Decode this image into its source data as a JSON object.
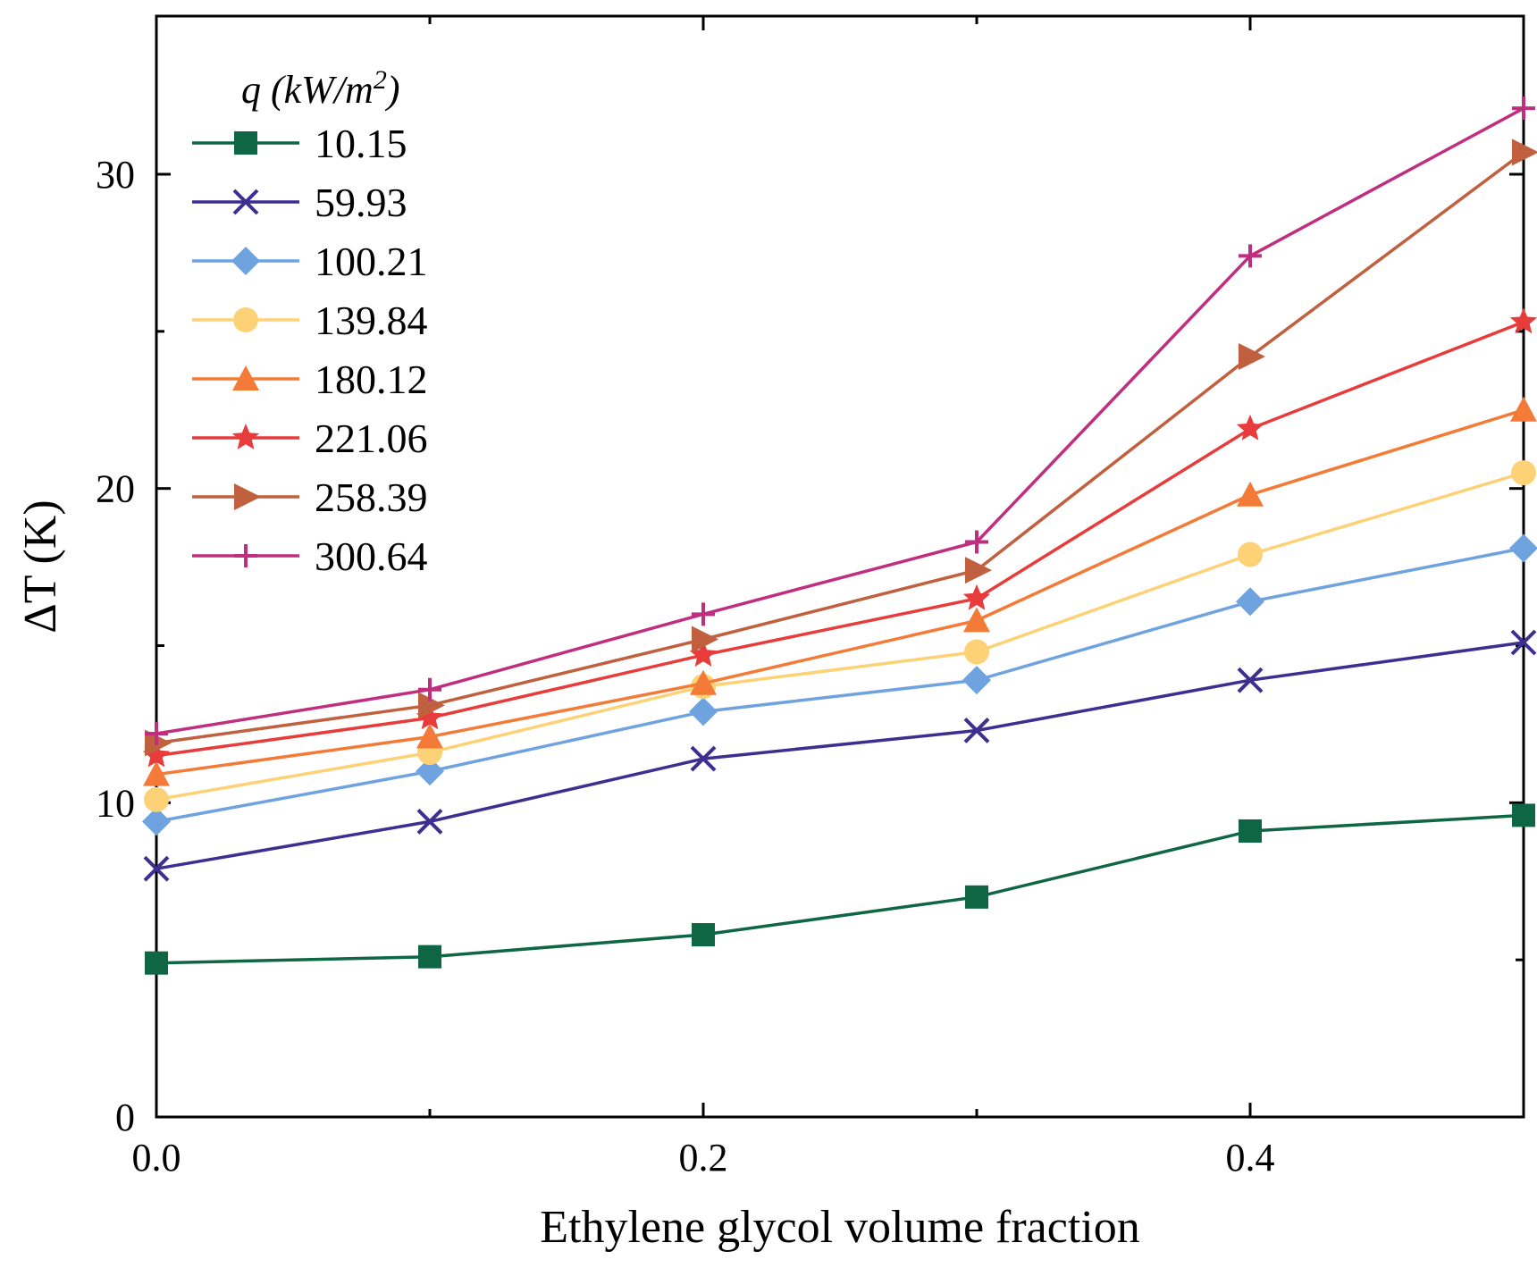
{
  "chart_data": {
    "type": "line",
    "xlabel": "Ethylene glycol volume fraction",
    "ylabel": "ΔT (K)",
    "xlim": [
      0,
      0.5
    ],
    "ylim": [
      0,
      30
    ],
    "x": [
      0.0,
      0.1,
      0.2,
      0.3,
      0.4,
      0.5
    ],
    "x_ticks": [
      0.0,
      0.2,
      0.4
    ],
    "x_tick_labels": [
      "0.0",
      "0.2",
      "0.4"
    ],
    "x_minor_ticks": [
      0.1,
      0.3,
      0.5
    ],
    "y_ticks": [
      0,
      10,
      20,
      30
    ],
    "y_tick_labels": [
      "0",
      "10",
      "20",
      "30"
    ],
    "y_minor_ticks": [
      5,
      15,
      25
    ],
    "grid": false,
    "legend_position": "top-left",
    "legend_title_main": "q",
    "legend_title_unit_pre": "(kW/m",
    "legend_title_unit_sup": "2",
    "legend_title_unit_post": ")",
    "series": [
      {
        "name": "10.15",
        "color": "#0e6644",
        "marker": "square",
        "values": [
          4.9,
          5.1,
          5.8,
          7.0,
          9.1,
          9.6
        ]
      },
      {
        "name": "59.93",
        "color": "#3c2f8f",
        "marker": "x",
        "values": [
          7.9,
          9.4,
          11.4,
          12.3,
          13.9,
          15.1
        ]
      },
      {
        "name": "100.21",
        "color": "#6fa3e0",
        "marker": "diamond",
        "values": [
          9.4,
          11.0,
          12.9,
          13.9,
          16.4,
          18.1
        ]
      },
      {
        "name": "139.84",
        "color": "#fdd277",
        "marker": "circle",
        "values": [
          10.1,
          11.6,
          13.7,
          14.8,
          17.9,
          20.5
        ]
      },
      {
        "name": "180.12",
        "color": "#f47a37",
        "marker": "triangle",
        "values": [
          10.9,
          12.1,
          13.8,
          15.8,
          19.8,
          22.5
        ]
      },
      {
        "name": "221.06",
        "color": "#e83c3c",
        "marker": "star",
        "values": [
          11.5,
          12.7,
          14.7,
          16.5,
          21.9,
          25.3
        ]
      },
      {
        "name": "258.39",
        "color": "#c0603f",
        "marker": "triangle-right",
        "values": [
          11.9,
          13.1,
          15.2,
          17.4,
          24.2,
          30.7
        ]
      },
      {
        "name": "300.64",
        "color": "#c02f7f",
        "marker": "plus",
        "values": [
          12.2,
          13.6,
          16.0,
          18.3,
          27.4,
          32.1
        ]
      }
    ]
  }
}
